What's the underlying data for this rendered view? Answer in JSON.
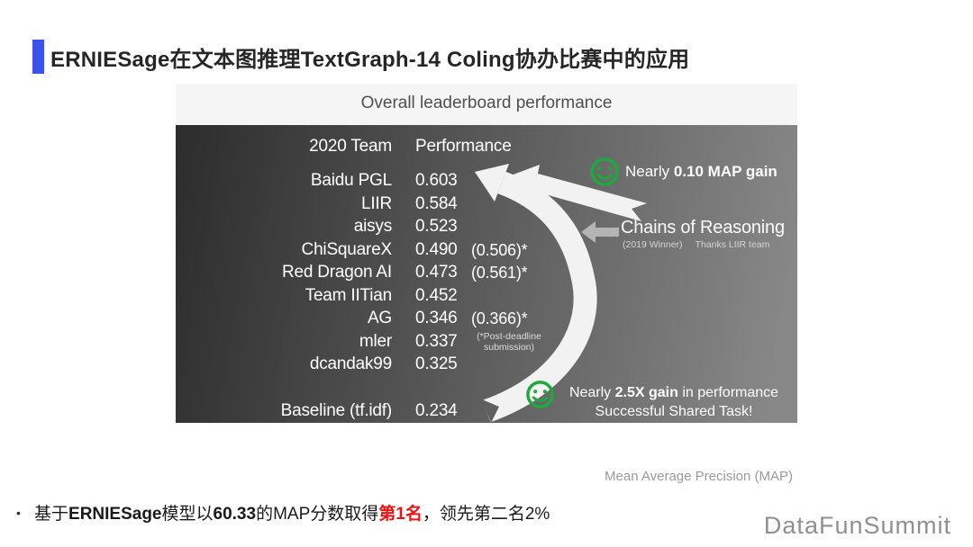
{
  "slide": {
    "title": "ERNIESage在文本图推理TextGraph-14 Coling协办比赛中的应用"
  },
  "figure": {
    "title": "Overall leaderboard performance",
    "caption": "Mean Average Precision (MAP)"
  },
  "chart_data": {
    "type": "table",
    "title": "Overall leaderboard performance",
    "columns": [
      "2020 Team",
      "Performance"
    ],
    "rows": [
      {
        "team": "Baidu PGL",
        "performance": "0.603",
        "post_deadline": ""
      },
      {
        "team": "LIIR",
        "performance": "0.584",
        "post_deadline": ""
      },
      {
        "team": "aisys",
        "performance": "0.523",
        "post_deadline": ""
      },
      {
        "team": "ChiSquareX",
        "performance": "0.490",
        "post_deadline": "(0.506)*"
      },
      {
        "team": "Red Dragon AI",
        "performance": "0.473",
        "post_deadline": "(0.561)*"
      },
      {
        "team": "Team IITian",
        "performance": "0.452",
        "post_deadline": ""
      },
      {
        "team": "AG",
        "performance": "0.346",
        "post_deadline": "(0.366)*"
      },
      {
        "team": "mler",
        "performance": "0.337",
        "post_deadline": ""
      },
      {
        "team": "dcandak99",
        "performance": "0.325",
        "post_deadline": ""
      },
      {
        "team": "Baseline (tf.idf)",
        "performance": "0.234",
        "post_deadline": ""
      }
    ],
    "footnote": "(*Post-deadline submission)",
    "xlabel": "Mean Average Precision (MAP)"
  },
  "annotations": {
    "map_gain": {
      "prefix": "Nearly ",
      "bold": "0.10 MAP gain"
    },
    "chains": {
      "title": "Chains of Reasoning",
      "sub_left": "(2019 Winner)",
      "sub_right": "Thanks LIIR team"
    },
    "gain": {
      "prefix": "Nearly ",
      "bold": "2.5X gain",
      "suffix": " in performance",
      "line2": "Successful Shared Task!"
    }
  },
  "icons": {
    "smiley_1": "smiley-face-icon",
    "smiley_2": "smiley-face-icon",
    "curved_arrow": "curved-up-arrow",
    "straight_arrow": "straight-up-arrow",
    "left_arrow": "left-arrow"
  },
  "colors": {
    "accent_blue": "#3b52ee",
    "highlight_red": "#f01212",
    "smiley_green": "#1fa83d",
    "panel_dark": "#2c2c2c",
    "panel_light": "#878787",
    "arrow_white": "#f2f2f2"
  },
  "footer": {
    "bullet": {
      "marker": "•",
      "segments": [
        {
          "text": "基于"
        },
        {
          "text": "ERNIESage"
        },
        {
          "text": "模型以"
        },
        {
          "text": "60.33"
        },
        {
          "text": "的MAP分数取得"
        },
        {
          "text": "第1名"
        },
        {
          "text": "，领先第二名2%"
        }
      ]
    },
    "watermark": "DataFunSummit"
  }
}
